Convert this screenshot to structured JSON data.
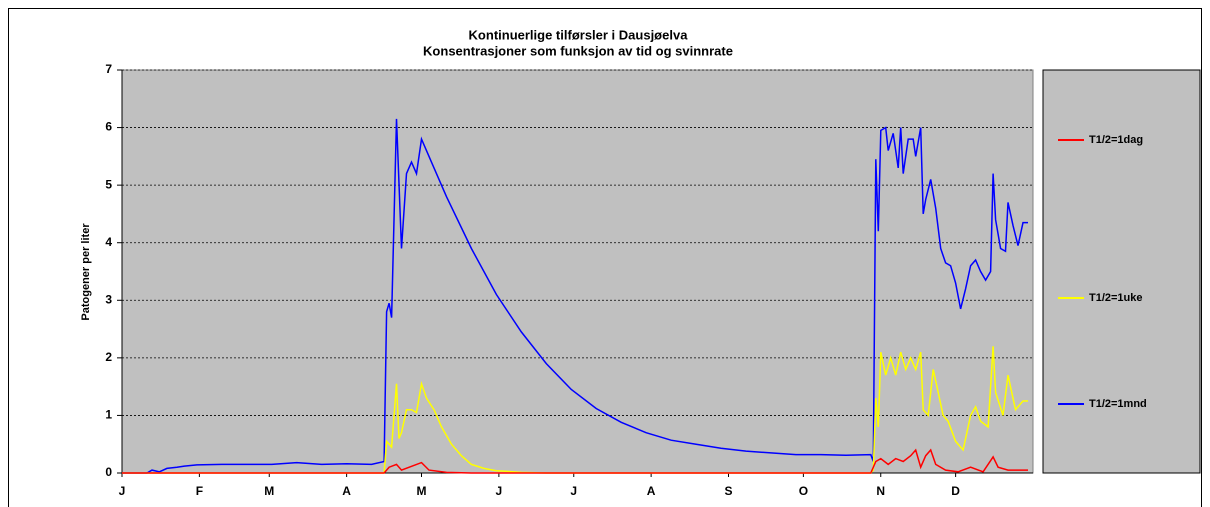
{
  "chart_data": {
    "type": "line",
    "title": "Kontinuerlige tilførsler i Dausjøelva",
    "subtitle": "Konsentrasjoner som funksjon av tid og svinnrate",
    "y_label": "Patogener per liter",
    "xlim": [
      0,
      365
    ],
    "xticks": [
      {
        "value": 0,
        "label": "J"
      },
      {
        "value": 31,
        "label": "F"
      },
      {
        "value": 59,
        "label": "M"
      },
      {
        "value": 90,
        "label": "A"
      },
      {
        "value": 120,
        "label": "M"
      },
      {
        "value": 151,
        "label": "J"
      },
      {
        "value": 181,
        "label": "J"
      },
      {
        "value": 212,
        "label": "A"
      },
      {
        "value": 243,
        "label": "S"
      },
      {
        "value": 273,
        "label": "O"
      },
      {
        "value": 304,
        "label": "N"
      },
      {
        "value": 334,
        "label": "D"
      }
    ],
    "ylim": [
      0,
      7
    ],
    "yticks": [
      0,
      1,
      2,
      3,
      4,
      5,
      6,
      7
    ],
    "grid": true,
    "legend": "right",
    "series": [
      {
        "name": "T1/2=1dag",
        "color": "#ff0000",
        "x": [
          0,
          105,
          107,
          110,
          112,
          120,
          123,
          130,
          140,
          300,
          302,
          304,
          307,
          310,
          313,
          316,
          318,
          320,
          322,
          324,
          326,
          330,
          335,
          340,
          345,
          349,
          351,
          355,
          358,
          363
        ],
        "values": [
          0,
          0,
          0.1,
          0.15,
          0.05,
          0.18,
          0.05,
          0.01,
          0,
          0,
          0.2,
          0.25,
          0.15,
          0.25,
          0.2,
          0.3,
          0.4,
          0.1,
          0.3,
          0.4,
          0.15,
          0.05,
          0.02,
          0.1,
          0.02,
          0.28,
          0.1,
          0.05,
          0.05,
          0.05
        ]
      },
      {
        "name": "T1/2=1uke",
        "color": "#ffff00",
        "x": [
          0,
          105,
          106,
          108,
          110,
          111,
          112,
          114,
          116,
          118,
          120,
          122,
          125,
          128,
          132,
          136,
          140,
          145,
          150,
          160,
          170,
          300,
          301,
          302,
          303,
          304,
          306,
          308,
          310,
          312,
          314,
          316,
          318,
          320,
          321,
          323,
          325,
          327,
          329,
          331,
          334,
          337,
          340,
          342,
          344,
          347,
          349,
          350,
          353,
          355,
          358,
          361,
          363
        ],
        "values": [
          0,
          0,
          0.55,
          0.45,
          1.55,
          0.6,
          0.7,
          1.1,
          1.1,
          1.05,
          1.55,
          1.3,
          1.1,
          0.8,
          0.5,
          0.3,
          0.15,
          0.08,
          0.04,
          0.01,
          0,
          0,
          0.05,
          1.3,
          0.8,
          2.1,
          1.7,
          2.0,
          1.7,
          2.1,
          1.8,
          2.0,
          1.8,
          2.1,
          1.1,
          1.0,
          1.8,
          1.4,
          1.0,
          0.9,
          0.55,
          0.4,
          1.0,
          1.15,
          0.9,
          0.8,
          2.2,
          1.4,
          1.0,
          1.7,
          1.1,
          1.25,
          1.25
        ]
      },
      {
        "name": "T1/2=1mnd",
        "color": "#0000ff",
        "x": [
          0,
          10,
          12,
          15,
          18,
          22,
          25,
          30,
          40,
          60,
          70,
          80,
          90,
          100,
          105,
          106,
          107,
          108,
          110,
          112,
          114,
          116,
          118,
          120,
          125,
          130,
          140,
          150,
          160,
          170,
          180,
          190,
          200,
          210,
          220,
          230,
          240,
          250,
          260,
          270,
          280,
          290,
          300,
          301,
          302,
          303,
          304,
          306,
          307,
          309,
          311,
          312,
          313,
          315,
          317,
          318,
          320,
          321,
          322,
          324,
          326,
          328,
          330,
          332,
          334,
          336,
          338,
          340,
          342,
          344,
          346,
          348,
          349,
          350,
          352,
          354,
          355,
          357,
          359,
          361,
          363
        ],
        "values": [
          0,
          0,
          0.05,
          0.02,
          0.08,
          0.1,
          0.12,
          0.14,
          0.15,
          0.15,
          0.18,
          0.15,
          0.16,
          0.15,
          0.2,
          2.8,
          2.95,
          2.7,
          6.15,
          3.9,
          5.2,
          5.4,
          5.2,
          5.8,
          5.3,
          4.8,
          3.9,
          3.1,
          2.45,
          1.9,
          1.45,
          1.12,
          0.88,
          0.7,
          0.57,
          0.5,
          0.43,
          0.38,
          0.35,
          0.32,
          0.32,
          0.31,
          0.32,
          0.2,
          5.45,
          4.2,
          5.95,
          6.0,
          5.6,
          5.9,
          5.3,
          6.0,
          5.2,
          5.8,
          5.8,
          5.5,
          6.0,
          4.5,
          4.75,
          5.1,
          4.6,
          3.9,
          3.65,
          3.6,
          3.3,
          2.85,
          3.2,
          3.6,
          3.7,
          3.5,
          3.35,
          3.5,
          5.2,
          4.4,
          3.9,
          3.85,
          4.7,
          4.3,
          3.95,
          4.35,
          4.35
        ]
      }
    ]
  }
}
